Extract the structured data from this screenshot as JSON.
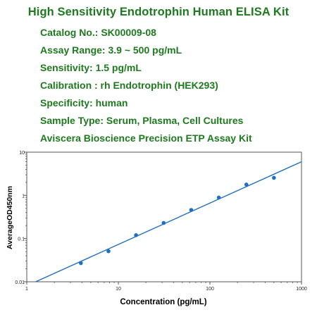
{
  "title": "High Sensitivity Endotrophin Human ELISA Kit",
  "info_lines": [
    "Catalog No.: SK00009-08",
    "Assay Range: 3.9 ~ 500 pg/mL",
    "Sensitivity: 1.5 pg/mL",
    "Calibration : rh Endotrophin (HEK293)",
    "Specificity: human",
    "Sample Type: Serum, Plasma, Cell Cultures",
    "Aviscera Bioscience Precision ETP Assay Kit"
  ],
  "colors": {
    "text": "#1e7a1e",
    "series": "#1f6fc0",
    "axis": "#555555"
  },
  "chart_data": {
    "type": "scatter",
    "xlabel": "Concentration (pg/mL)",
    "ylabel": "AverageOD450nm",
    "xscale": "log",
    "yscale": "log",
    "xlim": [
      1,
      1000
    ],
    "ylim": [
      0.01,
      10
    ],
    "xticks": [
      "1",
      "10",
      "100",
      "1000"
    ],
    "yticks": [
      "0.01",
      "0.1",
      "1",
      "10"
    ],
    "grid": false,
    "series": [
      {
        "points": [
          {
            "x": 3.9,
            "y": 0.027
          },
          {
            "x": 7.8,
            "y": 0.051
          },
          {
            "x": 15.6,
            "y": 0.12
          },
          {
            "x": 31.25,
            "y": 0.23
          },
          {
            "x": 62.5,
            "y": 0.46
          },
          {
            "x": 125,
            "y": 0.89
          },
          {
            "x": 250,
            "y": 1.78
          },
          {
            "x": 500,
            "y": 2.55
          }
        ],
        "fit_line": [
          {
            "x": 1.25,
            "y": 0.01
          },
          {
            "x": 1000,
            "y": 6.0
          }
        ]
      }
    ]
  }
}
